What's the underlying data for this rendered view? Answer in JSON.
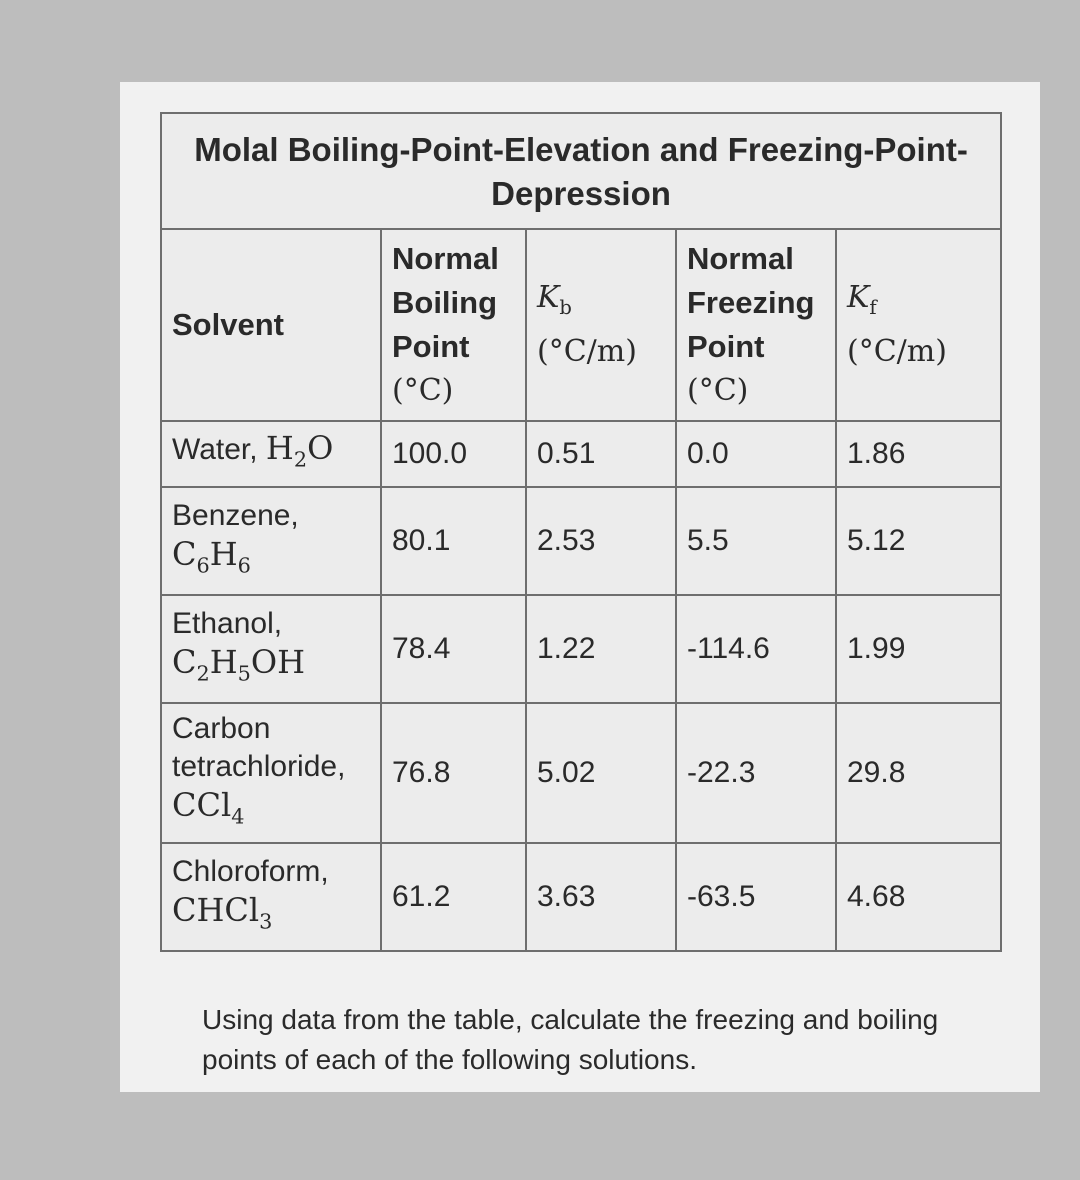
{
  "table": {
    "title": "Molal Boiling-Point-Elevation and Freezing-Point-Depression",
    "headers": {
      "solvent": "Solvent",
      "bp_line1": "Normal",
      "bp_line2": "Boiling",
      "bp_line3": "Point",
      "bp_unit": "(°C)",
      "kb_symbol": "K",
      "kb_sub": "b",
      "kb_unit": "(°C/m)",
      "fp_line1": "Normal",
      "fp_line2": "Freezing",
      "fp_line3": "Point",
      "fp_unit": "(°C)",
      "kf_symbol": "K",
      "kf_sub": "f",
      "kf_unit": "(°C/m)"
    },
    "rows": [
      {
        "name": "Water,",
        "f1": "H",
        "s1": "2",
        "f2": "O",
        "s2": "",
        "f3": "",
        "s3": "",
        "bp": "100.0",
        "kb": "0.51",
        "fp": "0.0",
        "kf": "1.86"
      },
      {
        "name": "Benzene,",
        "f1": "C",
        "s1": "6",
        "f2": "H",
        "s2": "6",
        "f3": "",
        "s3": "",
        "bp": "80.1",
        "kb": "2.53",
        "fp": "5.5",
        "kf": "5.12"
      },
      {
        "name": "Ethanol,",
        "f1": "C",
        "s1": "2",
        "f2": "H",
        "s2": "5",
        "f3": "OH",
        "s3": "",
        "bp": "78.4",
        "kb": "1.22",
        "fp": "-114.6",
        "kf": "1.99"
      },
      {
        "name1": "Carbon",
        "name": "tetrachloride,",
        "f1": "CCl",
        "s1": "4",
        "f2": "",
        "s2": "",
        "f3": "",
        "s3": "",
        "bp": "76.8",
        "kb": "5.02",
        "fp": "-22.3",
        "kf": "29.8"
      },
      {
        "name": "Chloroform,",
        "f1": "CHCl",
        "s1": "3",
        "f2": "",
        "s2": "",
        "f3": "",
        "s3": "",
        "bp": "61.2",
        "kb": "3.63",
        "fp": "-63.5",
        "kf": "4.68"
      }
    ]
  },
  "question": "Using data from the table, calculate the freezing and boiling points of each of the following solutions."
}
